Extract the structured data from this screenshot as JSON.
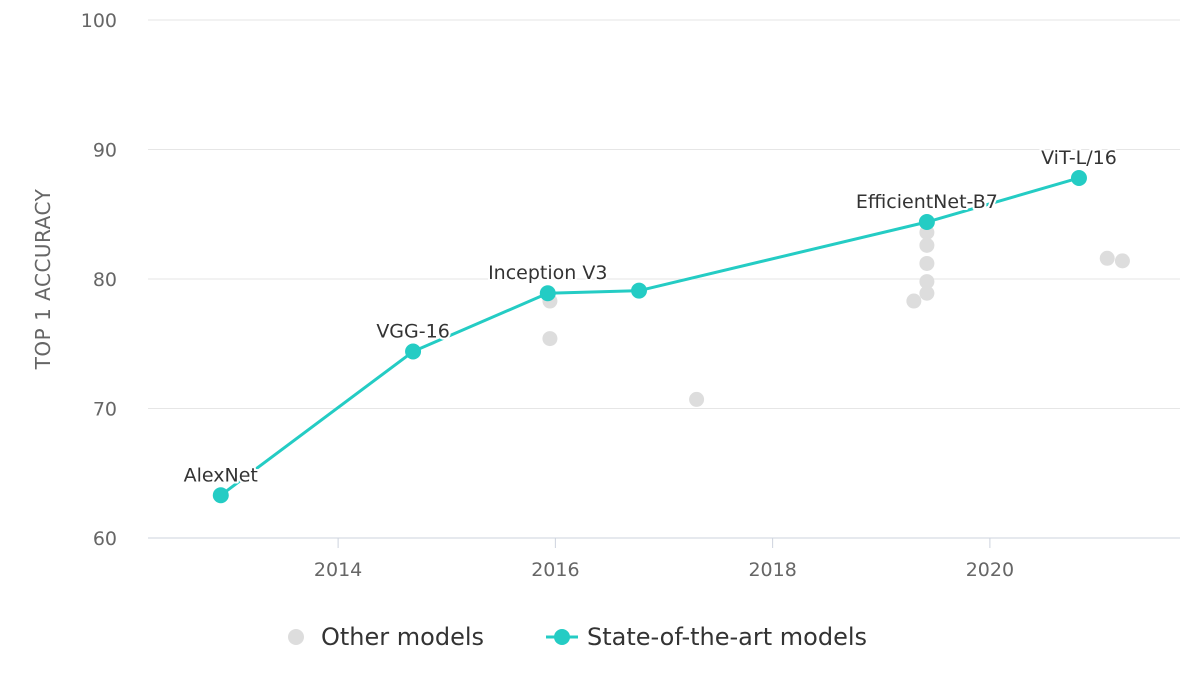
{
  "chart_data": {
    "type": "scatter",
    "title": "",
    "xlabel": "",
    "ylabel": "TOP 1 ACCURACY",
    "xlim": [
      2012.25,
      2021.75
    ],
    "ylim": [
      60,
      100
    ],
    "x_ticks": [
      2014,
      2016,
      2018,
      2020
    ],
    "y_ticks": [
      60,
      70,
      80,
      90,
      100
    ],
    "grid": true,
    "legend_position": "bottom",
    "series": [
      {
        "name": "Other models",
        "kind": "scatter",
        "color": "#dddddd",
        "points": [
          {
            "x": 2015.95,
            "y": 78.3
          },
          {
            "x": 2015.95,
            "y": 75.4
          },
          {
            "x": 2017.3,
            "y": 70.7
          },
          {
            "x": 2019.3,
            "y": 78.3
          },
          {
            "x": 2019.42,
            "y": 78.9
          },
          {
            "x": 2019.42,
            "y": 79.8
          },
          {
            "x": 2019.42,
            "y": 81.2
          },
          {
            "x": 2019.42,
            "y": 82.6
          },
          {
            "x": 2019.42,
            "y": 83.6
          },
          {
            "x": 2021.08,
            "y": 81.6
          },
          {
            "x": 2021.22,
            "y": 81.4
          }
        ]
      },
      {
        "name": "State-of-the-art models",
        "kind": "line",
        "color": "#24ccc4",
        "points": [
          {
            "x": 2012.92,
            "y": 63.3,
            "label": "AlexNet"
          },
          {
            "x": 2014.69,
            "y": 74.4,
            "label": "VGG-16"
          },
          {
            "x": 2015.93,
            "y": 78.9,
            "label": "Inception V3"
          },
          {
            "x": 2016.77,
            "y": 79.1,
            "label": ""
          },
          {
            "x": 2019.42,
            "y": 84.4,
            "label": "EfficientNet-B7"
          },
          {
            "x": 2020.82,
            "y": 87.8,
            "label": "ViT-L/16"
          }
        ]
      }
    ]
  }
}
